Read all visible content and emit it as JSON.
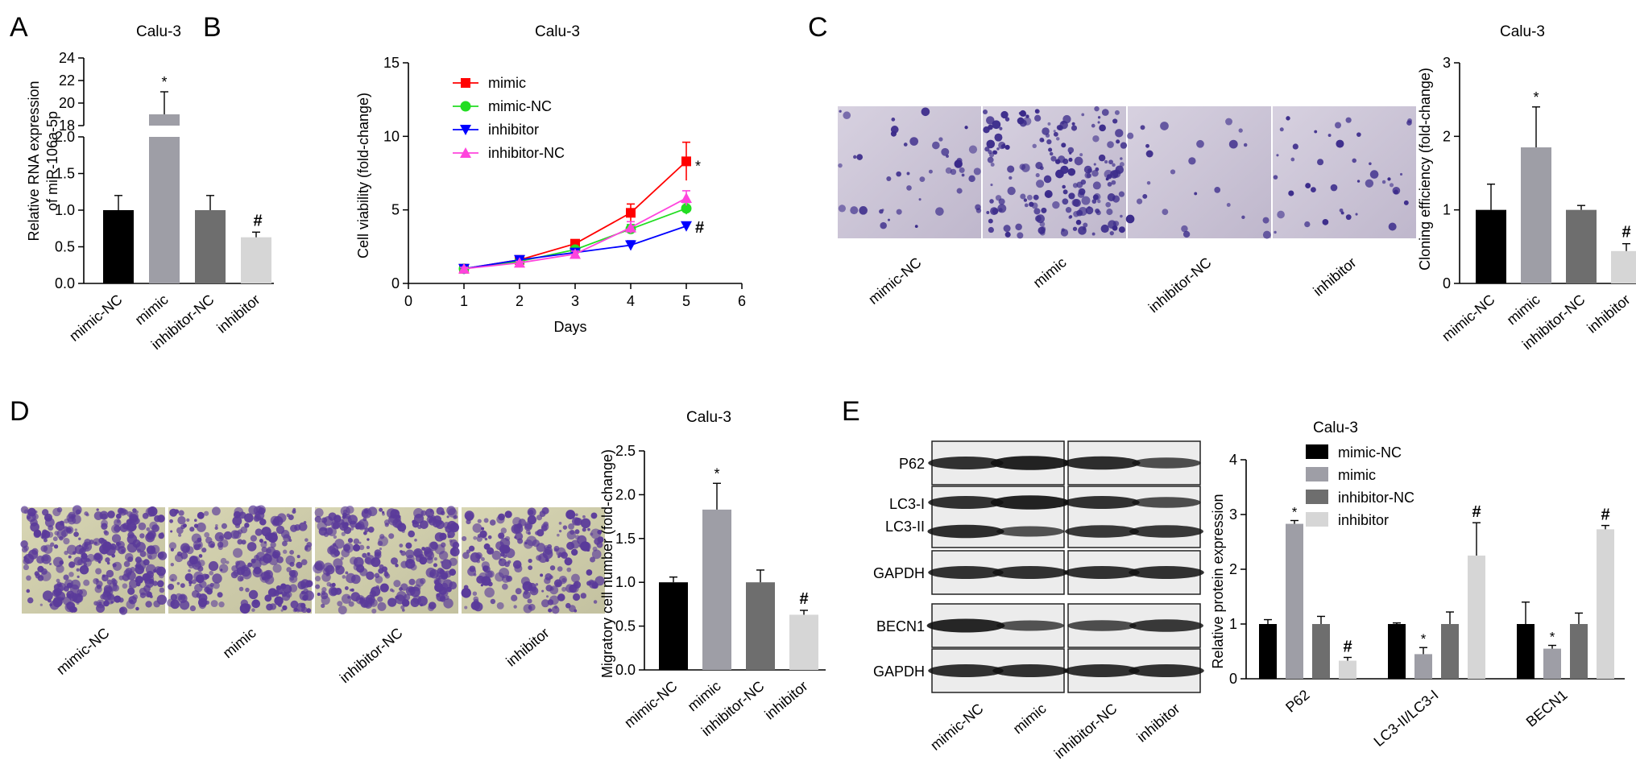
{
  "panels": {
    "A": {
      "letter": "A",
      "chart_data": {
        "type": "bar",
        "title": "Calu-3",
        "ylabel": "Relative RNA expression of miR-106a-5p",
        "ylabel_lines": [
          "Relative RNA expression",
          "of miR-106a-5p"
        ],
        "categories": [
          "mimic-NC",
          "mimic",
          "inhibitor-NC",
          "inhibitor"
        ],
        "values": [
          1.0,
          19.0,
          1.0,
          0.63
        ],
        "errors": [
          0.2,
          2.0,
          0.2,
          0.07
        ],
        "colors": [
          "#000000",
          "#9e9ea6",
          "#6e6e6e",
          "#d6d6d6"
        ],
        "marks": [
          "",
          "*",
          "",
          "#"
        ],
        "axis_break": true,
        "lower_ylim": [
          0,
          2.0
        ],
        "lower_ticks": [
          "0.0",
          "0.5",
          "1.0",
          "1.5",
          "2.0"
        ],
        "upper_ylim": [
          18,
          24
        ],
        "upper_ticks": [
          "18",
          "20",
          "22",
          "24"
        ]
      }
    },
    "B": {
      "letter": "B",
      "chart_data": {
        "type": "line",
        "title": "Calu-3",
        "xlabel": "Days",
        "ylabel": "Cell viability (fold-change)",
        "xlim": [
          0,
          6
        ],
        "ylim": [
          0,
          15
        ],
        "x_ticks": [
          "0",
          "1",
          "2",
          "3",
          "4",
          "5",
          "6"
        ],
        "y_ticks": [
          "0",
          "5",
          "10",
          "15"
        ],
        "x": [
          1,
          2,
          3,
          4,
          5
        ],
        "series": [
          {
            "name": "mimic",
            "color": "#ff0000",
            "marker": "square",
            "values": [
              1.0,
              1.6,
              2.7,
              4.8,
              8.3
            ],
            "errors": [
              0.1,
              0.15,
              0.2,
              0.6,
              1.3
            ],
            "mark": "*"
          },
          {
            "name": "mimic-NC",
            "color": "#22dd22",
            "marker": "circle",
            "values": [
              1.0,
              1.5,
              2.3,
              3.7,
              5.1
            ],
            "errors": [
              0.1,
              0.1,
              0.2,
              0.3,
              0.4
            ],
            "mark": ""
          },
          {
            "name": "inhibitor",
            "color": "#0000ff",
            "marker": "triangle-down",
            "values": [
              1.0,
              1.6,
              2.1,
              2.6,
              3.9
            ],
            "errors": [
              0.1,
              0.1,
              0.2,
              0.3,
              0.2
            ],
            "mark": "#"
          },
          {
            "name": "inhibitor-NC",
            "color": "#ff44dd",
            "marker": "triangle-up",
            "values": [
              1.0,
              1.4,
              2.0,
              3.8,
              5.8
            ],
            "errors": [
              0.1,
              0.1,
              0.2,
              0.4,
              0.5
            ],
            "mark": ""
          }
        ]
      }
    },
    "C": {
      "letter": "C",
      "image_labels": [
        "mimic-NC",
        "mimic",
        "inhibitor-NC",
        "inhibitor"
      ],
      "chart_data": {
        "type": "bar",
        "title": "Calu-3",
        "ylabel": "Cloning efficiency (fold-change)",
        "categories": [
          "mimic-NC",
          "mimic",
          "inhibitor-NC",
          "inhibitor"
        ],
        "values": [
          1.0,
          1.85,
          1.0,
          0.44
        ],
        "errors": [
          0.35,
          0.55,
          0.06,
          0.1
        ],
        "colors": [
          "#000000",
          "#9e9ea6",
          "#6e6e6e",
          "#d6d6d6"
        ],
        "marks": [
          "",
          "*",
          "",
          "#"
        ],
        "ylim": [
          0,
          3
        ],
        "y_ticks": [
          "0",
          "1",
          "2",
          "3"
        ]
      }
    },
    "D": {
      "letter": "D",
      "image_labels": [
        "mimic-NC",
        "mimic",
        "inhibitor-NC",
        "inhibitor"
      ],
      "chart_data": {
        "type": "bar",
        "title": "Calu-3",
        "ylabel": "Migratory cell number (fold-change)",
        "categories": [
          "mimic-NC",
          "mimic",
          "inhibitor-NC",
          "inhibitor"
        ],
        "values": [
          1.0,
          1.83,
          1.0,
          0.63
        ],
        "errors": [
          0.06,
          0.3,
          0.14,
          0.05
        ],
        "colors": [
          "#000000",
          "#9e9ea6",
          "#6e6e6e",
          "#d6d6d6"
        ],
        "marks": [
          "",
          "*",
          "",
          "#"
        ],
        "ylim": [
          0,
          2.5
        ],
        "y_ticks": [
          "0.0",
          "0.5",
          "1.0",
          "1.5",
          "2.0",
          "2.5"
        ]
      }
    },
    "E": {
      "letter": "E",
      "blot_labels": [
        "P62",
        "LC3-I",
        "LC3-II",
        "GAPDH",
        "BECN1",
        "GAPDH"
      ],
      "lane_labels": [
        "mimic-NC",
        "mimic",
        "inhibitor-NC",
        "inhibitor"
      ],
      "chart_data": {
        "type": "bar",
        "title": "Calu-3",
        "ylabel": "Relative protein expression",
        "categories": [
          "P62",
          "LC3-II/LC3-I",
          "BECN1"
        ],
        "ylim": [
          0,
          4
        ],
        "y_ticks": [
          "0",
          "1",
          "2",
          "3",
          "4"
        ],
        "legend_position": "top-right",
        "series": [
          {
            "name": "mimic-NC",
            "color": "#000000",
            "values": [
              1.0,
              1.0,
              1.0
            ],
            "errors": [
              0.08,
              0.02,
              0.4
            ],
            "marks": [
              "",
              "",
              ""
            ]
          },
          {
            "name": "mimic",
            "color": "#9e9ea6",
            "values": [
              2.83,
              0.45,
              0.55
            ],
            "errors": [
              0.06,
              0.12,
              0.06
            ],
            "marks": [
              "*",
              "*",
              "*"
            ]
          },
          {
            "name": "inhibitor-NC",
            "color": "#6e6e6e",
            "values": [
              1.0,
              1.0,
              1.0
            ],
            "errors": [
              0.14,
              0.22,
              0.2
            ],
            "marks": [
              "",
              "",
              ""
            ]
          },
          {
            "name": "inhibitor",
            "color": "#d6d6d6",
            "values": [
              0.33,
              2.25,
              2.73
            ],
            "errors": [
              0.06,
              0.6,
              0.07
            ],
            "marks": [
              "#",
              "#",
              "#"
            ]
          }
        ]
      }
    }
  }
}
